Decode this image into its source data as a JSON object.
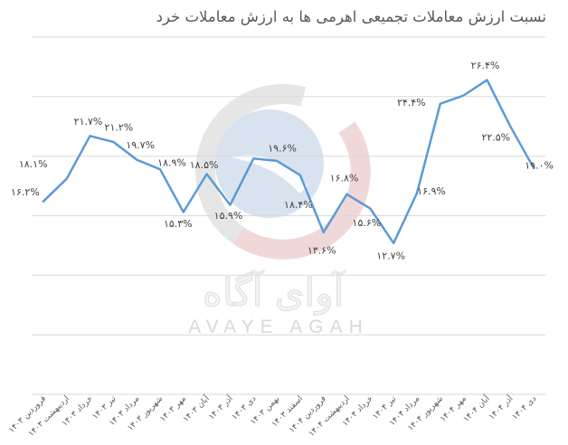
{
  "chart_data": {
    "type": "line",
    "title": "نسبت ارزش معاملات تجمیعی اهرمی ها به ارزش معاملات خرد",
    "xlabel": "",
    "ylabel": "",
    "categories": [
      "فروردین ۱۴۰۳",
      "اردیبهشت ۱۴۰۳",
      "خرداد ۱۴۰۳",
      "تیر ۱۴۰۳",
      "مرداد ۱۴۰۳",
      "شهریور ۱۴۰۳",
      "مهر ۱۴۰۳",
      "آبان ۱۴۰۳",
      "آذر ۱۴۰۳",
      "دی ۱۴۰۳",
      "بهمن ۱۴۰۳",
      "اسفند ۱۴۰۳",
      "فروردین ۱۴۰۴",
      "اردیبهشت ۱۴۰۴",
      "خرداد ۱۴۰۴",
      "تیر ۱۴۰۴",
      "مرداد ۱۴۰۴",
      "شهریور ۱۴۰۴",
      "مهر ۱۴۰۴",
      "آبان ۱۴۰۴",
      "آذر ۱۴۰۴",
      "دی ۱۴۰۴"
    ],
    "series": [
      {
        "values": [
          16.2,
          18.1,
          21.7,
          21.2,
          19.7,
          18.9,
          15.3,
          18.5,
          15.9,
          19.8,
          19.6,
          18.4,
          13.6,
          16.8,
          15.6,
          12.7,
          16.9,
          24.4,
          25.1,
          26.4,
          22.5,
          19.0
        ],
        "data_labels": [
          "۱۶.۲%",
          "۱۸.۱%",
          "۲۱.۷%",
          "۲۱.۲%",
          "۱۹.۷%",
          "۱۸.۹%",
          "۱۵.۳%",
          "۱۸.۵%",
          "۱۵.۹%",
          "",
          "۱۹.۶%",
          "۱۸.۴%",
          "۱۳.۶%",
          "۱۶.۸%",
          "۱۵.۶%",
          "۱۲.۷%",
          "۱۶.۹%",
          "۲۴.۴%",
          "",
          "۲۶.۴%",
          "۲۲.۵%",
          "۱۹.۰%"
        ],
        "color": "#5b9bd5"
      }
    ],
    "ylim": [
      0,
      30
    ],
    "y_grid_step": 5,
    "y_tick_labels_visible": false,
    "grid": true,
    "grid_color": "#d9d9d9",
    "legend": "none"
  },
  "watermark": {
    "text_fa": "آوای آگاه",
    "text_en": "AVAYE AGAH",
    "colors": {
      "ring_gray": "#e6e6e6",
      "ring_red": "#f1d8d8",
      "disc_blue": "#d9e3f0"
    }
  }
}
